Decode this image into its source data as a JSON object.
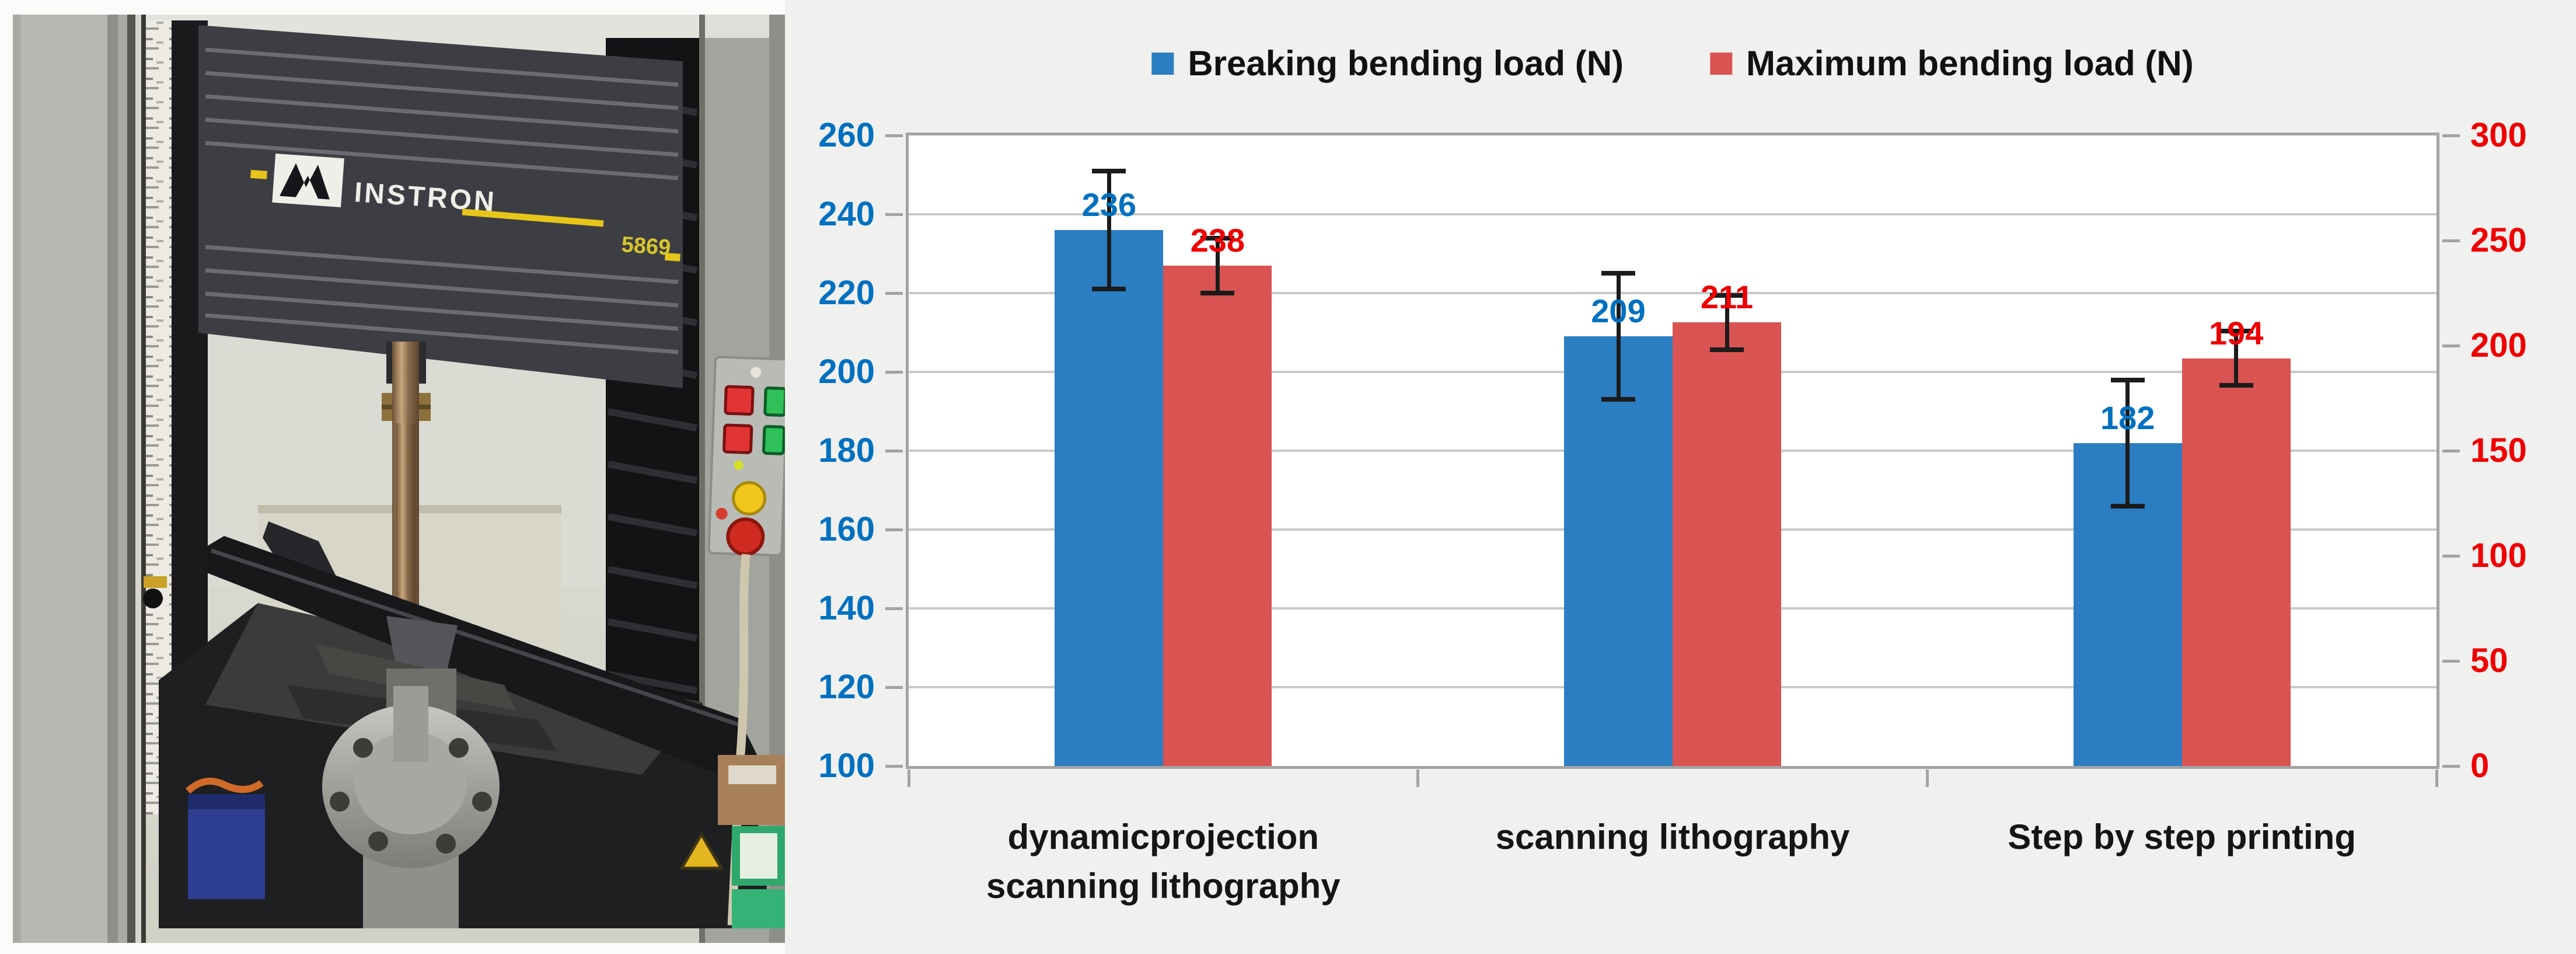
{
  "figure": {
    "photo": {
      "brand": "INSTRON",
      "model": "5869",
      "description": "Instron 5869 universal testing machine with three-point bending fixture"
    },
    "chart_data": {
      "type": "bar",
      "title": "",
      "categories": [
        "dynamicprojection scanning lithography",
        "scanning lithography",
        "Step by step printing"
      ],
      "series": [
        {
          "name": "Breaking bending load (N)",
          "axis": "left",
          "color": "#2b7ec1",
          "label_color": "#0070c0",
          "values": [
            236,
            209,
            182
          ],
          "error_bars": [
            15,
            16,
            16
          ]
        },
        {
          "name": "Maximum bending load (N)",
          "axis": "right",
          "color": "#d95352",
          "label_color": "#ee0000",
          "values": [
            238,
            211,
            194
          ],
          "error_bars": [
            13,
            13,
            13
          ]
        }
      ],
      "left_axis": {
        "min": 100,
        "max": 260,
        "step": 20,
        "color": "#0070c0",
        "tick_labels": [
          "100",
          "120",
          "140",
          "160",
          "180",
          "200",
          "220",
          "240",
          "260"
        ]
      },
      "right_axis": {
        "min": 0,
        "max": 300,
        "step": 50,
        "color": "#ee0000",
        "tick_labels": [
          "0",
          "50",
          "100",
          "150",
          "200",
          "250",
          "300"
        ]
      },
      "grid": true,
      "legend_position": "top",
      "data_labels": true
    }
  }
}
